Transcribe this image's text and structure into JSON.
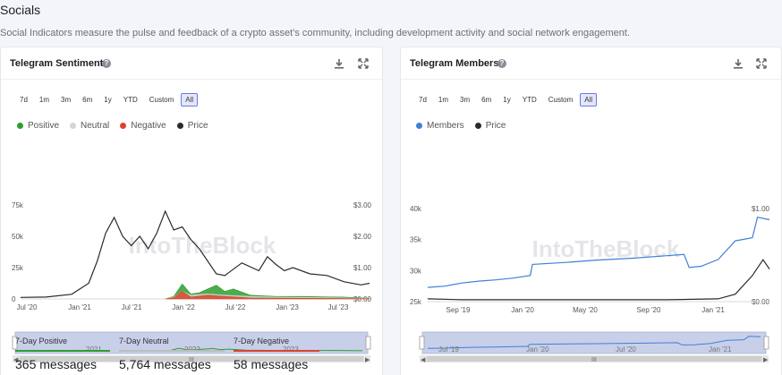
{
  "section": {
    "title": "Socials",
    "description": "Social Indicators measure the pulse and feedback of a crypto asset’s community, including development activity and social network engagement."
  },
  "range_buttons": [
    "7d",
    "1m",
    "3m",
    "6m",
    "1y",
    "YTD",
    "Custom",
    "All"
  ],
  "active_range": "All",
  "icons": {
    "help": "help-icon",
    "download": "download-icon",
    "expand": "expand-icon"
  },
  "watermark": "IntoTheBlock",
  "sentiment": {
    "title": "Telegram Sentiment",
    "legend": [
      {
        "label": "Positive",
        "color": "#2e9e2e"
      },
      {
        "label": "Neutral",
        "color": "#d4d4d4"
      },
      {
        "label": "Negative",
        "color": "#d9442c"
      },
      {
        "label": "Price",
        "color": "#2b2b2b"
      }
    ],
    "y_left_ticks": [
      "75k",
      "50k",
      "25k",
      "0"
    ],
    "y_right_ticks": [
      "$3.00",
      "$2.00",
      "$1.00",
      "$0.00"
    ],
    "x_ticks": [
      "Jul '20",
      "Jan '21",
      "Jul '21",
      "Jan '22",
      "Jul '22",
      "Jan '23",
      "Jul '23"
    ],
    "navigator_labels": [
      "2021",
      "2022",
      "2023"
    ],
    "stats": [
      {
        "label": "7-Day Positive",
        "value": "365 messages",
        "color": "#2e9e2e"
      },
      {
        "label": "7-Day Neutral",
        "value": "5,764 messages",
        "color": "#bdbdbd"
      },
      {
        "label": "7-Day Negative",
        "value": "58 messages",
        "color": "#d9442c"
      }
    ]
  },
  "members": {
    "title": "Telegram Members",
    "legend": [
      {
        "label": "Members",
        "color": "#3f7fd9"
      },
      {
        "label": "Price",
        "color": "#2b2b2b"
      }
    ],
    "y_left_ticks": [
      "40k",
      "35k",
      "30k",
      "25k"
    ],
    "y_right_ticks": [
      "$1.00",
      "$0.00"
    ],
    "x_ticks": [
      "Sep '19",
      "Jan '20",
      "May '20",
      "Sep '20",
      "Jan '21"
    ],
    "navigator_labels": [
      "Jul '19",
      "Jan '20",
      "Jul '20",
      "Jan '21"
    ]
  },
  "chart_data": [
    {
      "type": "area",
      "title": "Telegram Sentiment",
      "x_range": [
        "2020-06",
        "2023-11"
      ],
      "ylim_left": [
        0,
        75000
      ],
      "ylim_right": [
        0,
        3
      ],
      "series": [
        {
          "name": "Price",
          "axis": "right",
          "points": [
            [
              "2020-06",
              0.05
            ],
            [
              "2020-09",
              0.06
            ],
            [
              "2020-12",
              0.15
            ],
            [
              "2021-02",
              0.5
            ],
            [
              "2021-03",
              1.2
            ],
            [
              "2021-04",
              2.1
            ],
            [
              "2021-05",
              2.6
            ],
            [
              "2021-06",
              2.0
            ],
            [
              "2021-07",
              1.7
            ],
            [
              "2021-08",
              2.0
            ],
            [
              "2021-09",
              1.6
            ],
            [
              "2021-10",
              2.1
            ],
            [
              "2021-11",
              2.8
            ],
            [
              "2021-12",
              2.2
            ],
            [
              "2022-01",
              2.3
            ],
            [
              "2022-02",
              1.9
            ],
            [
              "2022-03",
              1.6
            ],
            [
              "2022-04",
              1.2
            ],
            [
              "2022-05",
              0.8
            ],
            [
              "2022-06",
              0.75
            ],
            [
              "2022-08",
              1.15
            ],
            [
              "2022-10",
              0.9
            ],
            [
              "2022-11",
              1.35
            ],
            [
              "2022-12",
              1.1
            ],
            [
              "2023-01",
              0.9
            ],
            [
              "2023-02",
              1.0
            ],
            [
              "2023-04",
              0.8
            ],
            [
              "2023-06",
              0.75
            ],
            [
              "2023-08",
              0.55
            ],
            [
              "2023-10",
              0.45
            ],
            [
              "2023-11",
              0.5
            ]
          ]
        },
        {
          "name": "Positive",
          "axis": "left",
          "points": [
            [
              "2021-11",
              0
            ],
            [
              "2021-12",
              2000
            ],
            [
              "2022-01",
              12000
            ],
            [
              "2022-02",
              4000
            ],
            [
              "2022-03",
              5000
            ],
            [
              "2022-04",
              8000
            ],
            [
              "2022-05",
              11000
            ],
            [
              "2022-06",
              6000
            ],
            [
              "2022-07",
              8000
            ],
            [
              "2022-09",
              3000
            ],
            [
              "2022-12",
              2000
            ],
            [
              "2023-03",
              2000
            ],
            [
              "2023-08",
              1500
            ],
            [
              "2023-11",
              500
            ]
          ]
        },
        {
          "name": "Neutral",
          "axis": "left",
          "points": [
            [
              "2021-11",
              0
            ],
            [
              "2021-12",
              1500
            ],
            [
              "2022-01",
              6000
            ],
            [
              "2022-02",
              3000
            ],
            [
              "2022-04",
              4000
            ],
            [
              "2022-06",
              3000
            ],
            [
              "2022-09",
              2000
            ],
            [
              "2022-12",
              1500
            ],
            [
              "2023-06",
              1000
            ],
            [
              "2023-11",
              400
            ]
          ]
        },
        {
          "name": "Negative",
          "axis": "left",
          "points": [
            [
              "2021-11",
              0
            ],
            [
              "2021-12",
              1000
            ],
            [
              "2022-01",
              6000
            ],
            [
              "2022-02",
              1500
            ],
            [
              "2022-04",
              3000
            ],
            [
              "2022-06",
              2000
            ],
            [
              "2022-09",
              800
            ],
            [
              "2023-01",
              600
            ],
            [
              "2023-11",
              200
            ]
          ]
        }
      ]
    },
    {
      "type": "line",
      "title": "Telegram Members",
      "x_range": [
        "2019-07",
        "2021-03"
      ],
      "ylim_left": [
        25000,
        40000
      ],
      "ylim_right": [
        0,
        1
      ],
      "series": [
        {
          "name": "Members",
          "axis": "left",
          "points": [
            [
              "2019-07",
              27300
            ],
            [
              "2019-08",
              27500
            ],
            [
              "2019-09",
              28000
            ],
            [
              "2019-10",
              28300
            ],
            [
              "2019-11",
              28500
            ],
            [
              "2019-12",
              28800
            ],
            [
              "2020-01",
              29200
            ],
            [
              "2020-01-05",
              31000
            ],
            [
              "2020-03",
              31300
            ],
            [
              "2020-05",
              31700
            ],
            [
              "2020-07",
              32000
            ],
            [
              "2020-09",
              32400
            ],
            [
              "2020-10",
              32600
            ],
            [
              "2020-10-10",
              30500
            ],
            [
              "2020-11",
              30700
            ],
            [
              "2020-12",
              31800
            ],
            [
              "2021-01",
              34800
            ],
            [
              "2021-02",
              35300
            ],
            [
              "2021-02-10",
              38600
            ],
            [
              "2021-03",
              38200
            ]
          ]
        },
        {
          "name": "Price",
          "axis": "right",
          "points": [
            [
              "2019-07",
              0.03
            ],
            [
              "2019-09",
              0.02
            ],
            [
              "2020-01",
              0.02
            ],
            [
              "2020-05",
              0.02
            ],
            [
              "2020-09",
              0.02
            ],
            [
              "2020-12",
              0.03
            ],
            [
              "2021-01",
              0.08
            ],
            [
              "2021-02",
              0.28
            ],
            [
              "2021-02-20",
              0.45
            ],
            [
              "2021-03",
              0.35
            ]
          ]
        }
      ]
    }
  ]
}
